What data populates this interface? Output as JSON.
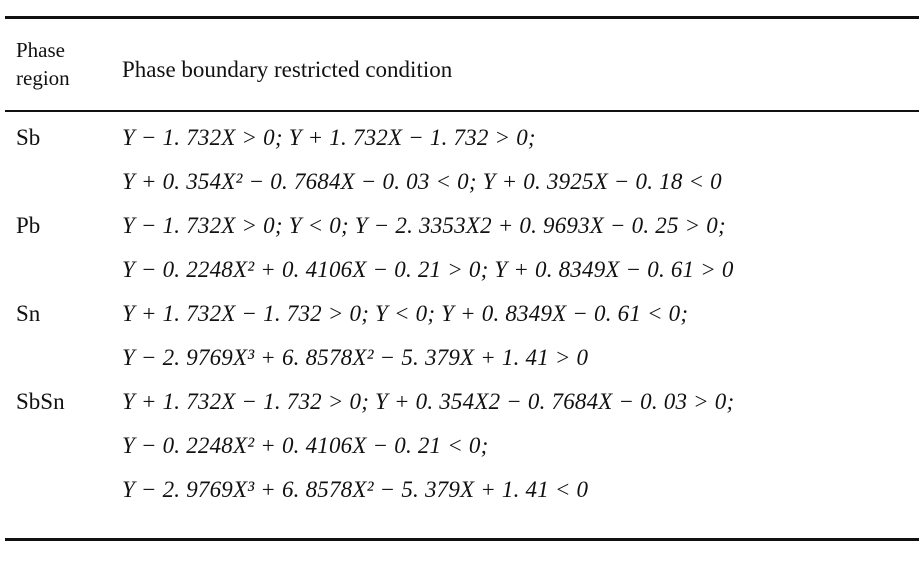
{
  "table": {
    "header": [
      "Phase region",
      "Phase boundary restricted condition"
    ],
    "rows": [
      {
        "region": "Sb",
        "conditions": [
          "Y − 1. 732X > 0; Y + 1. 732X − 1. 732 > 0;",
          "Y + 0. 354X² − 0. 7684X − 0. 03 < 0; Y + 0. 3925X − 0. 18 < 0"
        ]
      },
      {
        "region": "Pb",
        "conditions": [
          "Y − 1. 732X > 0; Y < 0; Y − 2. 3353X2 + 0. 9693X − 0. 25 > 0;",
          "Y − 0. 2248X² + 0. 4106X − 0. 21 > 0; Y + 0. 8349X − 0. 61 > 0"
        ]
      },
      {
        "region": "Sn",
        "conditions": [
          "Y + 1. 732X − 1. 732 > 0; Y < 0; Y + 0. 8349X − 0. 61 < 0;",
          "Y − 2. 9769X³ + 6. 8578X² − 5. 379X + 1. 41 > 0"
        ]
      },
      {
        "region": "SbSn",
        "conditions": [
          "Y + 1. 732X − 1. 732 > 0; Y + 0. 354X2 − 0. 7684X − 0. 03 > 0;",
          "Y − 0. 2248X² + 0. 4106X − 0. 21 < 0;",
          "Y − 2. 9769X³ + 6. 8578X² − 5. 379X + 1. 41 < 0"
        ]
      }
    ]
  }
}
